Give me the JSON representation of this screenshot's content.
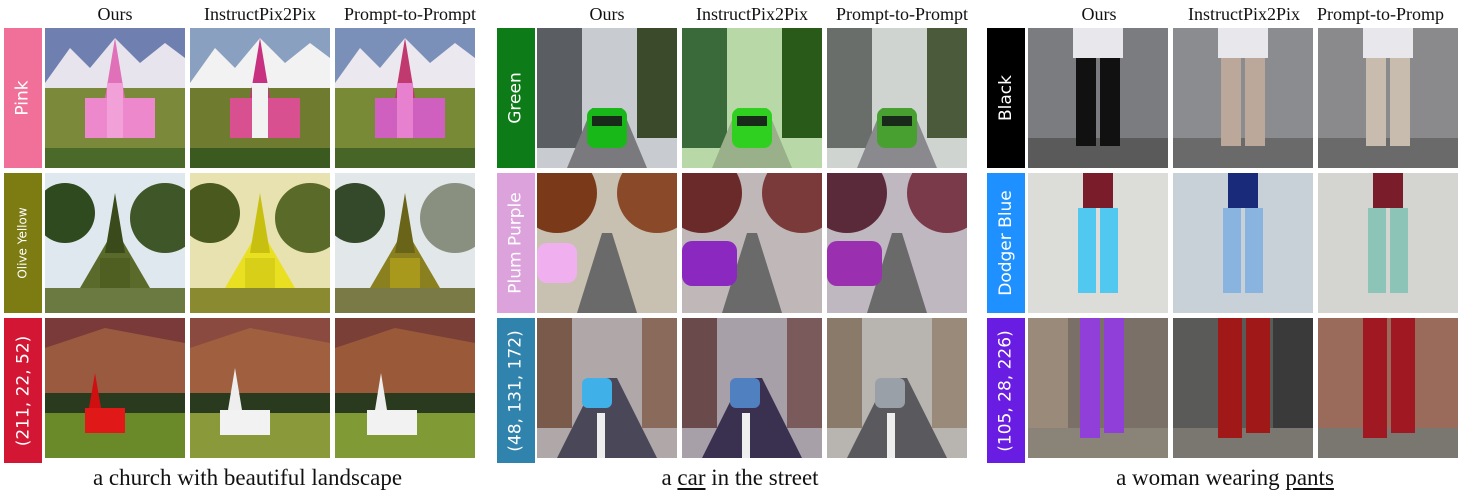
{
  "groups": [
    {
      "id": "church",
      "headers": [
        "Ours",
        "InstructPix2Pix",
        "Prompt-to-Prompt"
      ],
      "rows": [
        {
          "label": "Pink",
          "label_color": "#f0709a",
          "small": false
        },
        {
          "label": "Olive Yellow",
          "label_color": "#7d7c12",
          "small": true
        },
        {
          "label": "(211, 22, 52)",
          "label_color": "#d31634",
          "small": false
        }
      ],
      "caption": {
        "before": "a church with beautiful landscape",
        "underlined": "",
        "after": ""
      }
    },
    {
      "id": "car",
      "headers": [
        "Ours",
        "InstructPix2Pix",
        "Prompt-to-Prompt"
      ],
      "rows": [
        {
          "label": "Green",
          "label_color": "#0d7c18",
          "small": false
        },
        {
          "label": "Plum Purple",
          "label_color": "#dca2dc",
          "small": false
        },
        {
          "label": "(48, 131, 172)",
          "label_color": "#3083ac",
          "small": false
        }
      ],
      "caption": {
        "before": "a ",
        "underlined": "car",
        "after": " in the street"
      }
    },
    {
      "id": "woman",
      "headers": [
        "Ours",
        "InstructPix2Pix",
        "Prompt-to-Promp"
      ],
      "rows": [
        {
          "label": "Black",
          "label_color": "#000000",
          "small": false
        },
        {
          "label": "Dodger Blue",
          "label_color": "#1e90ff",
          "small": false
        },
        {
          "label": "(105, 28, 226)",
          "label_color": "#691ce2",
          "small": false
        }
      ],
      "caption": {
        "before": "a woman wearing ",
        "underlined": "pants",
        "after": ""
      }
    }
  ]
}
